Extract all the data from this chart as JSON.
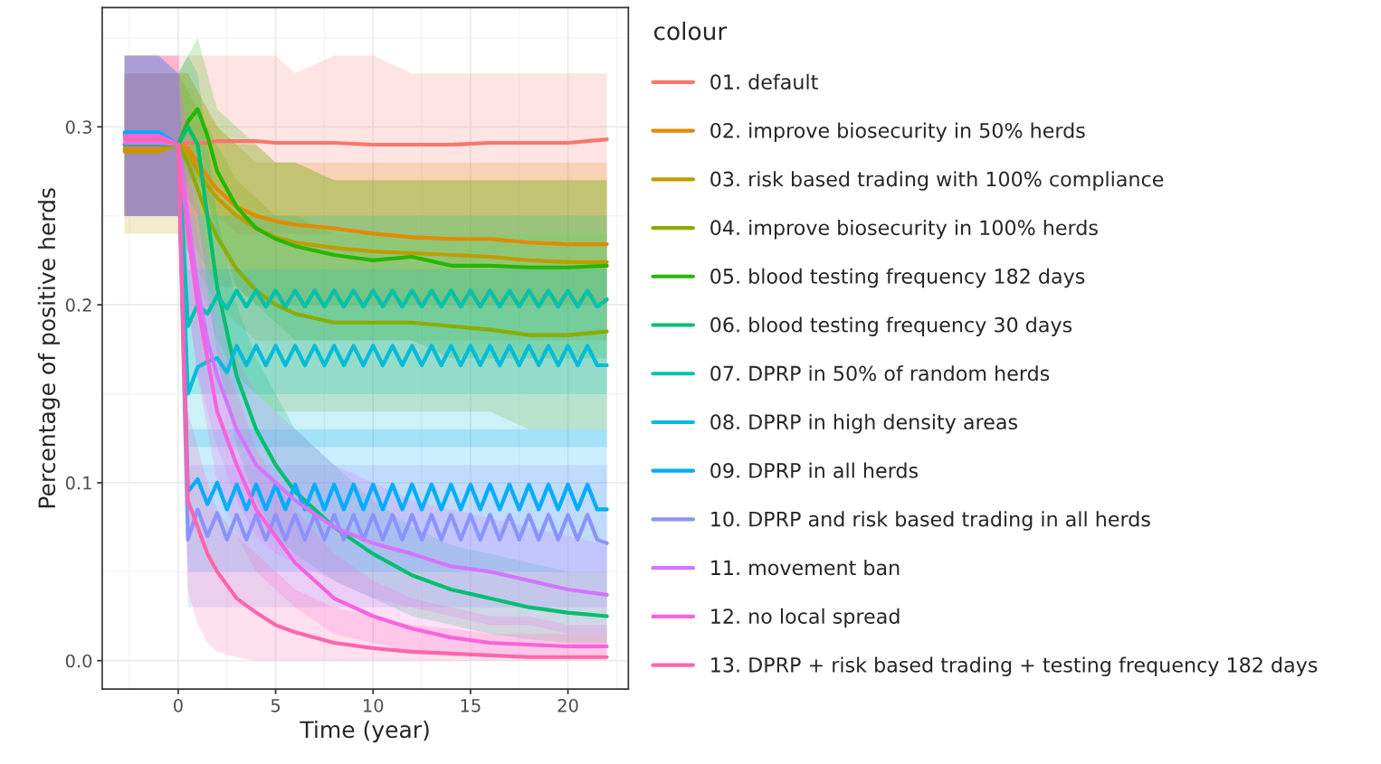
{
  "chart_data": {
    "type": "line",
    "xlabel": "Time (year)",
    "ylabel": "Percentage of positive herds",
    "legend_title": "colour",
    "xlim": [
      -3.9,
      23.1
    ],
    "xticks": [
      0,
      5,
      10,
      15,
      20
    ],
    "ylim": [
      -0.016,
      0.367
    ],
    "yticks": [
      {
        "value": 0,
        "label": "0.0"
      },
      {
        "value": 0.1,
        "label": "0.1"
      },
      {
        "value": 0.2,
        "label": "0.2"
      },
      {
        "value": 0.3,
        "label": "0.3"
      }
    ],
    "grid": true,
    "legend": "right",
    "line_style": "solid",
    "marker": "none",
    "series": [
      {
        "name": "01. default",
        "color": "#f8766d",
        "x": [
          -2.75,
          -1,
          0,
          0.5,
          1,
          1.5,
          2,
          3,
          4,
          5,
          6,
          8,
          10,
          12,
          14,
          16,
          18,
          20,
          22
        ],
        "values": [
          0.288,
          0.289,
          0.29,
          0.291,
          0.291,
          0.291,
          0.292,
          0.292,
          0.292,
          0.291,
          0.291,
          0.291,
          0.29,
          0.29,
          0.29,
          0.291,
          0.291,
          0.291,
          0.293
        ],
        "lower": [
          0.25,
          0.25,
          0.25,
          0.25,
          0.25,
          0.25,
          0.25,
          0.24,
          0.24,
          0.24,
          0.24,
          0.24,
          0.24,
          0.24,
          0.24,
          0.24,
          0.24,
          0.24,
          0.24
        ],
        "upper": [
          0.34,
          0.34,
          0.34,
          0.34,
          0.34,
          0.34,
          0.34,
          0.34,
          0.34,
          0.34,
          0.33,
          0.34,
          0.34,
          0.33,
          0.33,
          0.33,
          0.33,
          0.33,
          0.33
        ]
      },
      {
        "name": "02. improve biosecurity in 50% herds",
        "color": "#e18a00",
        "x": [
          -2.75,
          -1,
          0,
          0.5,
          1,
          1.5,
          2,
          3,
          4,
          5,
          6,
          8,
          10,
          12,
          14,
          16,
          18,
          20,
          22
        ],
        "values": [
          0.287,
          0.287,
          0.29,
          0.288,
          0.28,
          0.272,
          0.265,
          0.255,
          0.25,
          0.247,
          0.245,
          0.243,
          0.24,
          0.238,
          0.237,
          0.237,
          0.235,
          0.234,
          0.234
        ],
        "lower": [
          0.25,
          0.25,
          0.25,
          0.24,
          0.23,
          0.22,
          0.21,
          0.21,
          0.2,
          0.2,
          0.2,
          0.2,
          0.2,
          0.2,
          0.2,
          0.2,
          0.2,
          0.2,
          0.2
        ],
        "upper": [
          0.33,
          0.33,
          0.33,
          0.33,
          0.32,
          0.31,
          0.3,
          0.29,
          0.29,
          0.28,
          0.28,
          0.28,
          0.28,
          0.28,
          0.28,
          0.28,
          0.28,
          0.28,
          0.28
        ]
      },
      {
        "name": "03. risk based trading with 100% compliance",
        "color": "#be9c00",
        "x": [
          -2.75,
          -1,
          0,
          0.5,
          1,
          1.5,
          2,
          3,
          4,
          5,
          6,
          8,
          10,
          12,
          14,
          16,
          18,
          20,
          22
        ],
        "values": [
          0.286,
          0.286,
          0.29,
          0.285,
          0.275,
          0.267,
          0.26,
          0.25,
          0.243,
          0.238,
          0.235,
          0.232,
          0.23,
          0.229,
          0.228,
          0.227,
          0.225,
          0.224,
          0.224
        ],
        "lower": [
          0.24,
          0.24,
          0.24,
          0.23,
          0.22,
          0.21,
          0.2,
          0.19,
          0.18,
          0.18,
          0.18,
          0.18,
          0.18,
          0.18,
          0.18,
          0.18,
          0.18,
          0.18,
          0.18
        ],
        "upper": [
          0.33,
          0.33,
          0.33,
          0.33,
          0.32,
          0.31,
          0.3,
          0.29,
          0.28,
          0.28,
          0.28,
          0.27,
          0.27,
          0.27,
          0.27,
          0.27,
          0.27,
          0.27,
          0.27
        ]
      },
      {
        "name": "04. improve biosecurity in 100% herds",
        "color": "#8cab00",
        "x": [
          -2.75,
          -1,
          0,
          0.5,
          1,
          1.5,
          2,
          3,
          4,
          5,
          6,
          8,
          10,
          12,
          14,
          16,
          18,
          20,
          22
        ],
        "values": [
          0.29,
          0.29,
          0.29,
          0.28,
          0.265,
          0.25,
          0.238,
          0.22,
          0.208,
          0.2,
          0.195,
          0.19,
          0.19,
          0.19,
          0.188,
          0.186,
          0.183,
          0.183,
          0.185
        ],
        "lower": [
          0.25,
          0.25,
          0.25,
          0.23,
          0.21,
          0.2,
          0.18,
          0.16,
          0.15,
          0.14,
          0.14,
          0.14,
          0.14,
          0.14,
          0.14,
          0.14,
          0.13,
          0.13,
          0.13
        ],
        "upper": [
          0.33,
          0.33,
          0.33,
          0.32,
          0.31,
          0.3,
          0.29,
          0.27,
          0.26,
          0.25,
          0.25,
          0.24,
          0.24,
          0.24,
          0.24,
          0.24,
          0.24,
          0.24,
          0.24
        ]
      },
      {
        "name": "05. blood testing frequency 182 days",
        "color": "#24b700",
        "x": [
          -2.75,
          -1,
          0,
          0.5,
          1,
          1.5,
          2,
          3,
          4,
          5,
          6,
          8,
          10,
          12,
          14,
          16,
          18,
          20,
          22
        ],
        "values": [
          0.29,
          0.29,
          0.29,
          0.303,
          0.31,
          0.295,
          0.275,
          0.255,
          0.243,
          0.237,
          0.233,
          0.228,
          0.225,
          0.227,
          0.222,
          0.222,
          0.221,
          0.221,
          0.222
        ],
        "lower": [
          0.25,
          0.25,
          0.25,
          0.27,
          0.27,
          0.26,
          0.24,
          0.21,
          0.2,
          0.19,
          0.18,
          0.18,
          0.18,
          0.18,
          0.17,
          0.17,
          0.17,
          0.17,
          0.17
        ],
        "upper": [
          0.33,
          0.33,
          0.33,
          0.34,
          0.35,
          0.33,
          0.31,
          0.3,
          0.29,
          0.28,
          0.28,
          0.27,
          0.27,
          0.27,
          0.27,
          0.27,
          0.27,
          0.27,
          0.27
        ]
      },
      {
        "name": "06. blood testing frequency 30 days",
        "color": "#00be70",
        "x": [
          -2.75,
          -1,
          0,
          0.5,
          1,
          1.5,
          2,
          3,
          4,
          5,
          6,
          8,
          10,
          12,
          14,
          16,
          18,
          20,
          22
        ],
        "values": [
          0.29,
          0.29,
          0.29,
          0.3,
          0.29,
          0.25,
          0.21,
          0.16,
          0.13,
          0.11,
          0.095,
          0.075,
          0.06,
          0.048,
          0.04,
          0.035,
          0.03,
          0.027,
          0.025
        ],
        "lower": [
          0.25,
          0.25,
          0.25,
          0.26,
          0.25,
          0.21,
          0.17,
          0.12,
          0.09,
          0.07,
          0.06,
          0.045,
          0.035,
          0.025,
          0.02,
          0.015,
          0.012,
          0.01,
          0.01
        ],
        "upper": [
          0.33,
          0.33,
          0.33,
          0.34,
          0.33,
          0.29,
          0.25,
          0.2,
          0.17,
          0.15,
          0.13,
          0.11,
          0.09,
          0.075,
          0.065,
          0.06,
          0.055,
          0.05,
          0.05
        ]
      },
      {
        "name": "07. DPRP in 50% of random herds",
        "color": "#00c1ab",
        "x": [
          -2.75,
          -1,
          0,
          0.5,
          1,
          1.5,
          2,
          2.5,
          3,
          3.5,
          4,
          4.5,
          5,
          5.5,
          6,
          6.5,
          7,
          7.5,
          8,
          8.5,
          9,
          9.5,
          10,
          10.5,
          11,
          11.5,
          12,
          12.5,
          13,
          13.5,
          14,
          14.5,
          15,
          15.5,
          16,
          16.5,
          17,
          17.5,
          18,
          18.5,
          19,
          19.5,
          20,
          20.5,
          21,
          21.5,
          22
        ],
        "values": [
          0.295,
          0.295,
          0.29,
          0.188,
          0.2,
          0.195,
          0.205,
          0.198,
          0.208,
          0.199,
          0.208,
          0.199,
          0.208,
          0.199,
          0.208,
          0.199,
          0.208,
          0.199,
          0.208,
          0.199,
          0.208,
          0.199,
          0.208,
          0.199,
          0.208,
          0.199,
          0.208,
          0.199,
          0.208,
          0.199,
          0.208,
          0.199,
          0.208,
          0.199,
          0.208,
          0.199,
          0.208,
          0.199,
          0.208,
          0.199,
          0.208,
          0.199,
          0.208,
          0.199,
          0.208,
          0.199,
          0.203
        ],
        "lower": [
          0.25,
          0.25,
          0.25,
          0.15,
          0.15,
          0.15,
          0.15,
          0.15,
          0.15,
          0.15,
          0.15,
          0.15,
          0.15,
          0.15,
          0.15,
          0.15,
          0.15,
          0.15,
          0.15,
          0.15,
          0.15,
          0.15,
          0.15,
          0.15,
          0.15,
          0.15,
          0.15,
          0.15,
          0.15,
          0.15,
          0.15,
          0.15,
          0.15,
          0.15,
          0.15,
          0.15,
          0.15,
          0.15,
          0.15,
          0.15,
          0.15,
          0.15,
          0.15,
          0.15,
          0.15,
          0.15,
          0.15
        ],
        "upper": [
          0.34,
          0.34,
          0.33,
          0.25,
          0.25,
          0.25,
          0.25,
          0.25,
          0.25,
          0.25,
          0.25,
          0.25,
          0.25,
          0.25,
          0.25,
          0.25,
          0.25,
          0.25,
          0.25,
          0.25,
          0.25,
          0.25,
          0.25,
          0.25,
          0.25,
          0.25,
          0.25,
          0.25,
          0.25,
          0.25,
          0.25,
          0.25,
          0.25,
          0.25,
          0.25,
          0.25,
          0.25,
          0.25,
          0.25,
          0.25,
          0.25,
          0.25,
          0.25,
          0.25,
          0.25,
          0.25,
          0.25
        ]
      },
      {
        "name": "08. DPRP in high density areas",
        "color": "#00bbda",
        "x": [
          -2.75,
          -1,
          0,
          0.5,
          1,
          1.5,
          2,
          2.5,
          3,
          3.5,
          4,
          4.5,
          5,
          5.5,
          6,
          6.5,
          7,
          7.5,
          8,
          8.5,
          9,
          9.5,
          10,
          10.5,
          11,
          11.5,
          12,
          12.5,
          13,
          13.5,
          14,
          14.5,
          15,
          15.5,
          16,
          16.5,
          17,
          17.5,
          18,
          18.5,
          19,
          19.5,
          20,
          20.5,
          21,
          21.5,
          22
        ],
        "values": [
          0.296,
          0.296,
          0.29,
          0.15,
          0.165,
          0.168,
          0.17,
          0.162,
          0.177,
          0.166,
          0.177,
          0.166,
          0.177,
          0.166,
          0.177,
          0.166,
          0.177,
          0.166,
          0.177,
          0.166,
          0.177,
          0.166,
          0.177,
          0.166,
          0.177,
          0.166,
          0.177,
          0.166,
          0.177,
          0.166,
          0.177,
          0.166,
          0.177,
          0.166,
          0.177,
          0.166,
          0.177,
          0.166,
          0.177,
          0.166,
          0.177,
          0.166,
          0.177,
          0.166,
          0.177,
          0.166,
          0.166
        ],
        "lower": [
          0.25,
          0.25,
          0.25,
          0.12,
          0.12,
          0.12,
          0.12,
          0.12,
          0.12,
          0.12,
          0.12,
          0.12,
          0.12,
          0.12,
          0.12,
          0.12,
          0.12,
          0.12,
          0.12,
          0.12,
          0.12,
          0.12,
          0.12,
          0.12,
          0.12,
          0.12,
          0.12,
          0.12,
          0.12,
          0.12,
          0.12,
          0.12,
          0.12,
          0.12,
          0.12,
          0.12,
          0.12,
          0.12,
          0.12,
          0.12,
          0.12,
          0.12,
          0.12,
          0.12,
          0.12,
          0.12,
          0.12
        ],
        "upper": [
          0.34,
          0.34,
          0.33,
          0.22,
          0.22,
          0.22,
          0.22,
          0.22,
          0.22,
          0.22,
          0.22,
          0.22,
          0.22,
          0.22,
          0.22,
          0.22,
          0.22,
          0.22,
          0.22,
          0.22,
          0.22,
          0.22,
          0.22,
          0.22,
          0.22,
          0.22,
          0.22,
          0.22,
          0.22,
          0.22,
          0.22,
          0.22,
          0.22,
          0.22,
          0.22,
          0.22,
          0.22,
          0.22,
          0.22,
          0.22,
          0.22,
          0.22,
          0.22,
          0.22,
          0.22,
          0.22,
          0.22
        ]
      },
      {
        "name": "09. DPRP in all herds",
        "color": "#00acfc",
        "x": [
          -2.75,
          -1,
          0,
          0.5,
          1,
          1.5,
          2,
          2.5,
          3,
          3.5,
          4,
          4.5,
          5,
          5.5,
          6,
          6.5,
          7,
          7.5,
          8,
          8.5,
          9,
          9.5,
          10,
          10.5,
          11,
          11.5,
          12,
          12.5,
          13,
          13.5,
          14,
          14.5,
          15,
          15.5,
          16,
          16.5,
          17,
          17.5,
          18,
          18.5,
          19,
          19.5,
          20,
          20.5,
          21,
          21.5,
          22
        ],
        "values": [
          0.297,
          0.297,
          0.29,
          0.095,
          0.102,
          0.088,
          0.1,
          0.085,
          0.099,
          0.085,
          0.099,
          0.085,
          0.099,
          0.085,
          0.099,
          0.085,
          0.099,
          0.085,
          0.099,
          0.085,
          0.099,
          0.085,
          0.099,
          0.085,
          0.099,
          0.085,
          0.099,
          0.085,
          0.099,
          0.085,
          0.099,
          0.085,
          0.099,
          0.085,
          0.099,
          0.085,
          0.099,
          0.085,
          0.099,
          0.085,
          0.099,
          0.085,
          0.099,
          0.085,
          0.099,
          0.085,
          0.085
        ],
        "lower": [
          0.25,
          0.25,
          0.25,
          0.05,
          0.05,
          0.05,
          0.05,
          0.05,
          0.05,
          0.05,
          0.05,
          0.05,
          0.05,
          0.05,
          0.05,
          0.05,
          0.05,
          0.05,
          0.05,
          0.05,
          0.05,
          0.05,
          0.05,
          0.05,
          0.05,
          0.05,
          0.05,
          0.05,
          0.05,
          0.05,
          0.05,
          0.05,
          0.05,
          0.05,
          0.05,
          0.05,
          0.05,
          0.05,
          0.05,
          0.05,
          0.05,
          0.05,
          0.05,
          0.05,
          0.05,
          0.05,
          0.05
        ],
        "upper": [
          0.34,
          0.34,
          0.33,
          0.13,
          0.13,
          0.13,
          0.13,
          0.13,
          0.13,
          0.13,
          0.13,
          0.13,
          0.13,
          0.13,
          0.13,
          0.13,
          0.13,
          0.13,
          0.13,
          0.13,
          0.13,
          0.13,
          0.13,
          0.13,
          0.13,
          0.13,
          0.13,
          0.13,
          0.13,
          0.13,
          0.13,
          0.13,
          0.13,
          0.13,
          0.13,
          0.13,
          0.13,
          0.13,
          0.13,
          0.13,
          0.13,
          0.13,
          0.13,
          0.13,
          0.13,
          0.13,
          0.13
        ]
      },
      {
        "name": "10. DPRP and risk based trading in all herds",
        "color": "#8b93ff",
        "x": [
          -2.75,
          -1,
          0,
          0.5,
          1,
          1.5,
          2,
          2.5,
          3,
          3.5,
          4,
          4.5,
          5,
          5.5,
          6,
          6.5,
          7,
          7.5,
          8,
          8.5,
          9,
          9.5,
          10,
          10.5,
          11,
          11.5,
          12,
          12.5,
          13,
          13.5,
          14,
          14.5,
          15,
          15.5,
          16,
          16.5,
          17,
          17.5,
          18,
          18.5,
          19,
          19.5,
          20,
          20.5,
          21,
          21.5,
          22
        ],
        "values": [
          0.294,
          0.294,
          0.29,
          0.068,
          0.085,
          0.07,
          0.083,
          0.068,
          0.082,
          0.068,
          0.082,
          0.068,
          0.082,
          0.068,
          0.082,
          0.068,
          0.082,
          0.068,
          0.082,
          0.068,
          0.082,
          0.068,
          0.082,
          0.068,
          0.082,
          0.068,
          0.082,
          0.068,
          0.082,
          0.068,
          0.082,
          0.068,
          0.082,
          0.068,
          0.082,
          0.068,
          0.082,
          0.068,
          0.082,
          0.068,
          0.082,
          0.068,
          0.082,
          0.068,
          0.082,
          0.068,
          0.066
        ],
        "lower": [
          0.25,
          0.25,
          0.25,
          0.03,
          0.03,
          0.03,
          0.03,
          0.03,
          0.03,
          0.03,
          0.03,
          0.03,
          0.03,
          0.03,
          0.03,
          0.03,
          0.03,
          0.03,
          0.03,
          0.03,
          0.03,
          0.03,
          0.03,
          0.03,
          0.03,
          0.03,
          0.03,
          0.03,
          0.03,
          0.03,
          0.03,
          0.03,
          0.03,
          0.03,
          0.03,
          0.03,
          0.03,
          0.03,
          0.03,
          0.03,
          0.03,
          0.03,
          0.03,
          0.03,
          0.03,
          0.03,
          0.03
        ],
        "upper": [
          0.34,
          0.34,
          0.33,
          0.11,
          0.11,
          0.11,
          0.11,
          0.11,
          0.11,
          0.11,
          0.11,
          0.11,
          0.11,
          0.11,
          0.11,
          0.11,
          0.11,
          0.11,
          0.11,
          0.11,
          0.11,
          0.11,
          0.11,
          0.11,
          0.11,
          0.11,
          0.11,
          0.11,
          0.11,
          0.11,
          0.11,
          0.11,
          0.11,
          0.11,
          0.11,
          0.11,
          0.11,
          0.11,
          0.11,
          0.11,
          0.11,
          0.11,
          0.11,
          0.11,
          0.11,
          0.11,
          0.11
        ]
      },
      {
        "name": "11. movement ban",
        "color": "#d575fe",
        "x": [
          -2.75,
          -1,
          0,
          0.5,
          1,
          1.5,
          2,
          3,
          4,
          5,
          6,
          8,
          10,
          12,
          14,
          16,
          18,
          20,
          22
        ],
        "values": [
          0.291,
          0.291,
          0.29,
          0.25,
          0.21,
          0.18,
          0.16,
          0.13,
          0.11,
          0.1,
          0.09,
          0.075,
          0.066,
          0.06,
          0.053,
          0.05,
          0.045,
          0.04,
          0.037
        ],
        "lower": [
          0.25,
          0.25,
          0.25,
          0.2,
          0.16,
          0.14,
          0.12,
          0.09,
          0.07,
          0.06,
          0.055,
          0.045,
          0.035,
          0.03,
          0.025,
          0.02,
          0.02,
          0.015,
          0.015
        ],
        "upper": [
          0.33,
          0.33,
          0.33,
          0.3,
          0.26,
          0.23,
          0.2,
          0.17,
          0.15,
          0.14,
          0.13,
          0.11,
          0.1,
          0.09,
          0.085,
          0.08,
          0.075,
          0.07,
          0.065
        ]
      },
      {
        "name": "12. no local spread",
        "color": "#f962dd",
        "x": [
          -2.75,
          -1,
          0,
          0.5,
          1,
          1.5,
          2,
          3,
          4,
          5,
          6,
          8,
          10,
          12,
          14,
          16,
          18,
          20,
          22
        ],
        "values": [
          0.295,
          0.295,
          0.29,
          0.24,
          0.2,
          0.17,
          0.14,
          0.11,
          0.085,
          0.07,
          0.055,
          0.035,
          0.025,
          0.018,
          0.013,
          0.01,
          0.009,
          0.008,
          0.008
        ],
        "lower": [
          0.25,
          0.25,
          0.25,
          0.2,
          0.16,
          0.13,
          0.1,
          0.07,
          0.05,
          0.04,
          0.03,
          0.015,
          0.01,
          0.005,
          0.003,
          0.002,
          0.002,
          0.002,
          0.002
        ],
        "upper": [
          0.34,
          0.34,
          0.34,
          0.28,
          0.24,
          0.21,
          0.18,
          0.15,
          0.12,
          0.1,
          0.085,
          0.06,
          0.045,
          0.035,
          0.03,
          0.025,
          0.025,
          0.02,
          0.02
        ]
      },
      {
        "name": "13. DPRP + risk based trading + testing frequency 182 days",
        "color": "#ff65ac",
        "x": [
          -2.75,
          -1,
          0,
          0.5,
          1,
          1.5,
          2,
          3,
          4,
          5,
          6,
          8,
          10,
          12,
          14,
          16,
          18,
          20,
          22
        ],
        "values": [
          0.293,
          0.293,
          0.29,
          0.09,
          0.075,
          0.06,
          0.05,
          0.035,
          0.027,
          0.02,
          0.016,
          0.01,
          0.007,
          0.005,
          0.004,
          0.003,
          0.002,
          0.002,
          0.002
        ],
        "lower": [
          0.25,
          0.25,
          0.25,
          0.04,
          0.02,
          0.01,
          0.005,
          0.002,
          0,
          0,
          0,
          0,
          0,
          0,
          0,
          0,
          0,
          0,
          0
        ],
        "upper": [
          0.34,
          0.34,
          0.34,
          0.14,
          0.12,
          0.1,
          0.085,
          0.07,
          0.06,
          0.05,
          0.04,
          0.03,
          0.025,
          0.02,
          0.018,
          0.015,
          0.015,
          0.015,
          0.015
        ]
      }
    ]
  }
}
